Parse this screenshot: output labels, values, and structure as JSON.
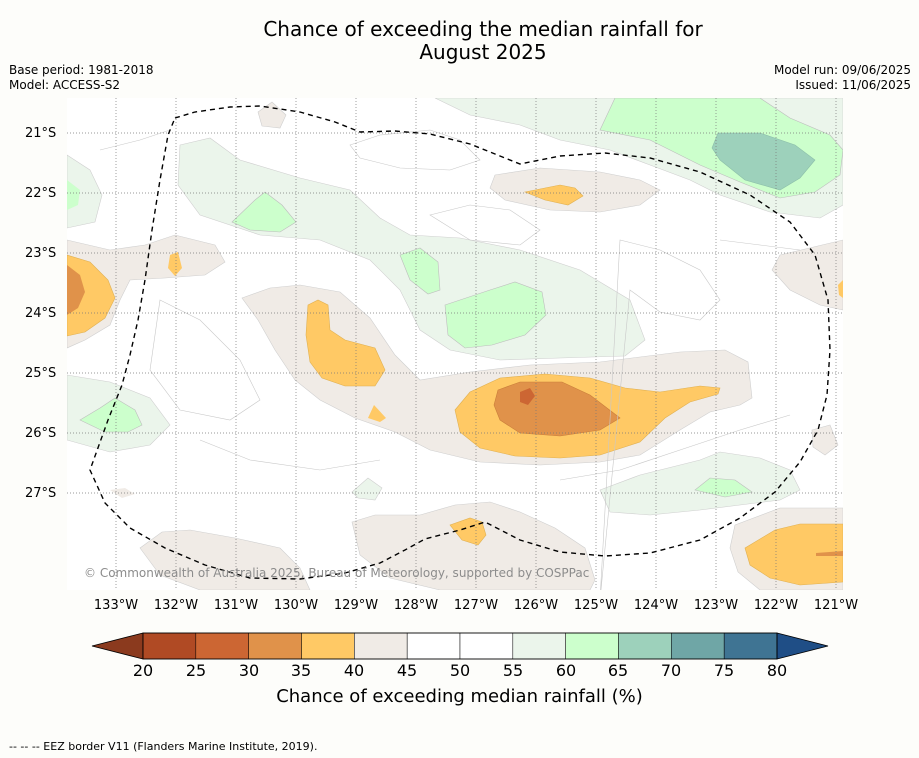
{
  "title": {
    "line1": "Chance of exceeding the median rainfall for",
    "line2": "August 2025"
  },
  "meta": {
    "base_period": "Base period: 1981-2018",
    "model": "Model: ACCESS-S2",
    "model_run": "Model run: 09/06/2025",
    "issued": "Issued: 11/06/2025"
  },
  "map": {
    "lat_labels": [
      "21°S",
      "22°S",
      "23°S",
      "24°S",
      "25°S",
      "26°S",
      "27°S"
    ],
    "lon_labels": [
      "133°W",
      "132°W",
      "131°W",
      "130°W",
      "129°W",
      "128°W",
      "127°W",
      "126°W",
      "125°W",
      "124°W",
      "123°W",
      "122°W",
      "121°W"
    ],
    "copyright": "© Commonwealth of Australia 2025, Bureau of Meteorology, supported by COSPPac",
    "border_color": "#000000"
  },
  "colorbar": {
    "ticks": [
      "20",
      "25",
      "30",
      "35",
      "40",
      "45",
      "50",
      "55",
      "60",
      "65",
      "70",
      "75",
      "80"
    ],
    "colors": [
      "#b04a24",
      "#cc6633",
      "#e0924a",
      "#ffc965",
      "#f0ebe6",
      "#ffffff",
      "#ffffff",
      "#ebf5eb",
      "#ccffcc",
      "#9dd1bb",
      "#6fa6a6",
      "#3f7493"
    ],
    "under_color": "#8b3a1e",
    "over_color": "#1f4e86",
    "label": "Chance of exceeding median rainfall (%)"
  },
  "footnote": "--  --  -- EEZ border V11 (Flanders Marine Institute, 2019)."
}
